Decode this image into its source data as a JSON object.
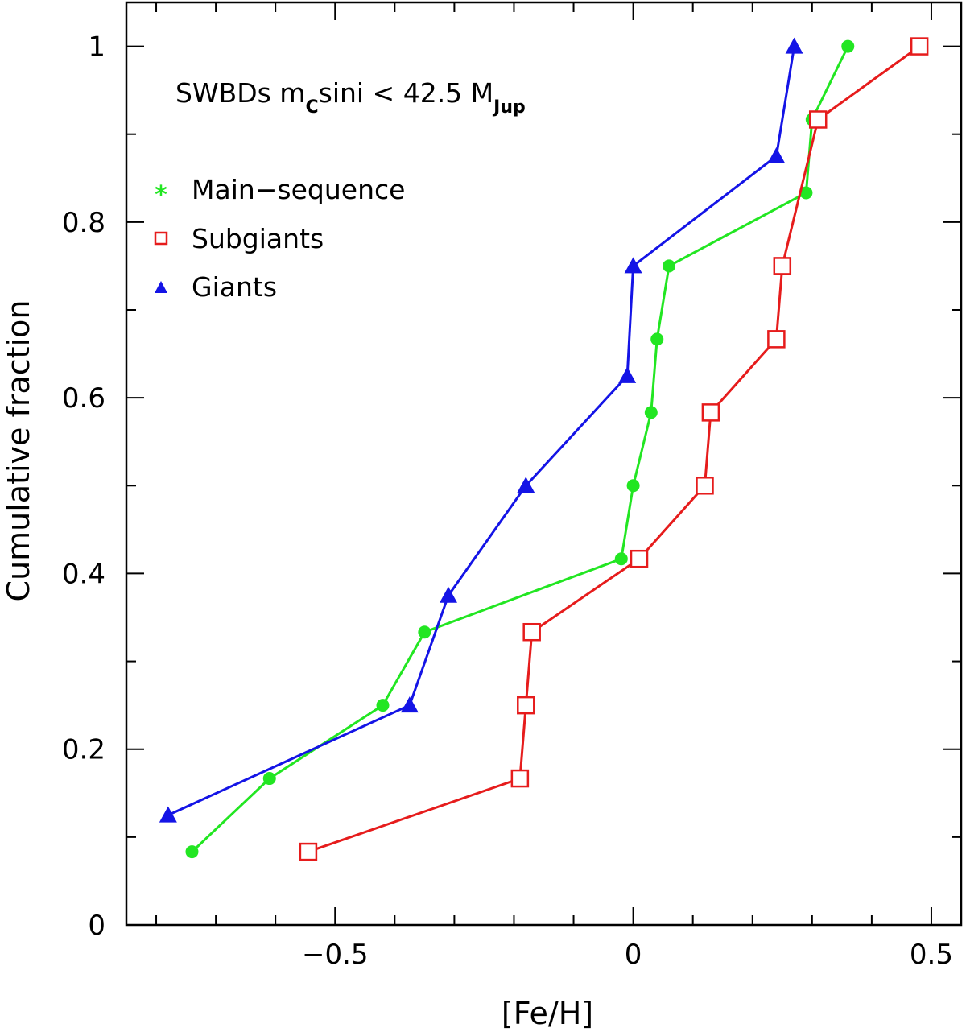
{
  "chart_data": {
    "type": "line",
    "title": "",
    "annotation": {
      "prefix": "SWBDs m",
      "sub1": "C",
      "middle": "sini < 42.5 M",
      "sub2": "Jup"
    },
    "xlabel": "[Fe/H]",
    "ylabel": "Cumulative fraction",
    "xlim": [
      -0.85,
      0.55
    ],
    "ylim": [
      0,
      1.05
    ],
    "x_ticks": [
      -0.5,
      0,
      0.5
    ],
    "x_tick_labels": [
      "−0.5",
      "0",
      "0.5"
    ],
    "y_ticks": [
      0,
      0.2,
      0.4,
      0.6,
      0.8,
      1
    ],
    "y_tick_labels": [
      "0",
      "0.2",
      "0.4",
      "0.6",
      "0.8",
      "1"
    ],
    "legend_position": "top-left",
    "series": [
      {
        "name": "Main−sequence",
        "legend_symbol": "*",
        "marker": "circle",
        "color": "#22e622",
        "x": [
          -0.74,
          -0.61,
          -0.42,
          -0.35,
          -0.02,
          0.0,
          0.03,
          0.04,
          0.06,
          0.29,
          0.3,
          0.36
        ],
        "y": [
          0.0833,
          0.1667,
          0.25,
          0.3333,
          0.4167,
          0.5,
          0.5833,
          0.6667,
          0.75,
          0.8333,
          0.9167,
          1.0
        ]
      },
      {
        "name": "Subgiants",
        "legend_symbol": "square",
        "marker": "square",
        "color": "#e61c1c",
        "x": [
          -0.545,
          -0.19,
          -0.18,
          -0.17,
          0.01,
          0.12,
          0.13,
          0.24,
          0.25,
          0.31,
          0.48
        ],
        "y": [
          0.0833,
          0.1667,
          0.25,
          0.3333,
          0.4167,
          0.5,
          0.5833,
          0.6667,
          0.75,
          0.9167,
          1.0
        ]
      },
      {
        "name": "Giants",
        "legend_symbol": "triangle",
        "marker": "triangle",
        "color": "#1414e6",
        "x": [
          -0.78,
          -0.375,
          -0.31,
          -0.18,
          -0.01,
          0.0,
          0.24,
          0.27
        ],
        "y": [
          0.125,
          0.25,
          0.375,
          0.5,
          0.625,
          0.75,
          0.875,
          1.0
        ]
      }
    ]
  }
}
